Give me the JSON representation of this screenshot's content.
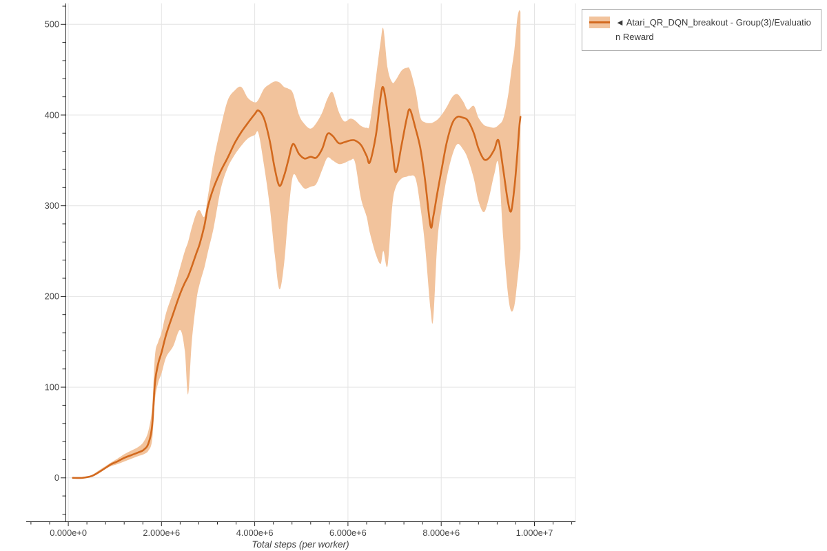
{
  "legend": {
    "entries": [
      {
        "label": "◄ Atari_QR_DQN_breakout - Group(3)/Evaluation Reward",
        "line_color": "#d2691e",
        "band_color": "#f2c39c"
      }
    ]
  },
  "chart_data": {
    "type": "line",
    "title": "",
    "xlabel": "Total steps (per worker)",
    "ylabel": "",
    "legend_position": "top-right-outside",
    "grid": {
      "show_major_x": true,
      "show_major_y": true,
      "color": "#e4e4e4"
    },
    "x_axis": {
      "min": -60000,
      "max": 10880000,
      "major_ticks": [
        0,
        2000000,
        4000000,
        6000000,
        8000000,
        10000000
      ],
      "major_tick_labels": [
        "0.000e+0",
        "2.000e+6",
        "4.000e+6",
        "6.000e+6",
        "8.000e+6",
        "1.000e+7"
      ],
      "minor_tick_step": 400000,
      "minor_tick_start": -800000
    },
    "y_axis": {
      "min": -48,
      "max": 523,
      "major_ticks": [
        0,
        100,
        200,
        300,
        400,
        500
      ],
      "major_tick_labels": [
        "0",
        "100",
        "200",
        "300",
        "400",
        "500"
      ],
      "minor_tick_step": 20,
      "minor_tick_start": -40
    },
    "series": [
      {
        "name": "Atari_QR_DQN_breakout - Group(3)/Evaluation Reward",
        "line_color": "#d2691e",
        "band_color": "#f2c39c",
        "x_scale": 1000000,
        "points_format": [
          "x_in_millions_of_steps",
          "mean",
          "band_low",
          "band_high"
        ],
        "points": [
          [
            0.1,
            0,
            0,
            0
          ],
          [
            0.3,
            0,
            0,
            0
          ],
          [
            0.5,
            2,
            1,
            3
          ],
          [
            0.65,
            6,
            5,
            8
          ],
          [
            0.8,
            11,
            10,
            13
          ],
          [
            0.92,
            15,
            13,
            17
          ],
          [
            1.05,
            18,
            15,
            21
          ],
          [
            1.2,
            22,
            18,
            26
          ],
          [
            1.35,
            25,
            21,
            30
          ],
          [
            1.5,
            28,
            24,
            34
          ],
          [
            1.62,
            31,
            26,
            40
          ],
          [
            1.72,
            38,
            30,
            52
          ],
          [
            1.8,
            58,
            42,
            78
          ],
          [
            1.86,
            105,
            86,
            135
          ],
          [
            1.93,
            126,
            105,
            150
          ],
          [
            2.0,
            138,
            115,
            160
          ],
          [
            2.1,
            158,
            133,
            182
          ],
          [
            2.25,
            181,
            145,
            205
          ],
          [
            2.4,
            203,
            163,
            232
          ],
          [
            2.5,
            215,
            140,
            250
          ],
          [
            2.57,
            222,
            92,
            260
          ],
          [
            2.65,
            233,
            150,
            276
          ],
          [
            2.75,
            248,
            196,
            292
          ],
          [
            2.82,
            258,
            214,
            295
          ],
          [
            2.92,
            278,
            232,
            288
          ],
          [
            3.0,
            300,
            250,
            312
          ],
          [
            3.12,
            320,
            276,
            350
          ],
          [
            3.27,
            338,
            318,
            386
          ],
          [
            3.42,
            353,
            342,
            416
          ],
          [
            3.57,
            369,
            356,
            427
          ],
          [
            3.71,
            381,
            366,
            431
          ],
          [
            3.85,
            391,
            374,
            419
          ],
          [
            4.0,
            401,
            378,
            414
          ],
          [
            4.08,
            405,
            380,
            417
          ],
          [
            4.2,
            396,
            344,
            429
          ],
          [
            4.32,
            372,
            300,
            434
          ],
          [
            4.43,
            341,
            246,
            437
          ],
          [
            4.53,
            322,
            208,
            436
          ],
          [
            4.63,
            333,
            236,
            431
          ],
          [
            4.72,
            350,
            290,
            429
          ],
          [
            4.82,
            368,
            333,
            424
          ],
          [
            4.95,
            357,
            326,
            400
          ],
          [
            5.07,
            352,
            319,
            390
          ],
          [
            5.2,
            354,
            321,
            385
          ],
          [
            5.32,
            353,
            324,
            391
          ],
          [
            5.45,
            363,
            340,
            403
          ],
          [
            5.56,
            379,
            353,
            418
          ],
          [
            5.67,
            377,
            350,
            425
          ],
          [
            5.8,
            369,
            346,
            404
          ],
          [
            5.92,
            370,
            347,
            393
          ],
          [
            6.05,
            372,
            350,
            396
          ],
          [
            6.15,
            372,
            348,
            394
          ],
          [
            6.28,
            367,
            308,
            388
          ],
          [
            6.4,
            355,
            288,
            386
          ],
          [
            6.47,
            348,
            270,
            391
          ],
          [
            6.6,
            378,
            246,
            441
          ],
          [
            6.7,
            420,
            236,
            481
          ],
          [
            6.76,
            430,
            250,
            495
          ],
          [
            6.85,
            402,
            234,
            452
          ],
          [
            6.95,
            362,
            300,
            436
          ],
          [
            7.03,
            337,
            321,
            439
          ],
          [
            7.15,
            367,
            330,
            449
          ],
          [
            7.26,
            396,
            332,
            452
          ],
          [
            7.33,
            406,
            333,
            450
          ],
          [
            7.45,
            385,
            330,
            427
          ],
          [
            7.55,
            364,
            300,
            398
          ],
          [
            7.65,
            330,
            258,
            392
          ],
          [
            7.77,
            278,
            186,
            391
          ],
          [
            7.83,
            288,
            176,
            392
          ],
          [
            7.92,
            315,
            262,
            395
          ],
          [
            8.02,
            343,
            300,
            401
          ],
          [
            8.12,
            370,
            331,
            409
          ],
          [
            8.24,
            391,
            356,
            420
          ],
          [
            8.35,
            398,
            368,
            423
          ],
          [
            8.47,
            397,
            362,
            415
          ],
          [
            8.57,
            394,
            352,
            406
          ],
          [
            8.7,
            380,
            330,
            410
          ],
          [
            8.8,
            363,
            305,
            397
          ],
          [
            8.92,
            351,
            293,
            389
          ],
          [
            9.03,
            353,
            310,
            387
          ],
          [
            9.14,
            362,
            335,
            386
          ],
          [
            9.23,
            372,
            345,
            389
          ],
          [
            9.33,
            340,
            264,
            396
          ],
          [
            9.43,
            305,
            204,
            420
          ],
          [
            9.5,
            294,
            184,
            447
          ],
          [
            9.57,
            320,
            190,
            472
          ],
          [
            9.63,
            355,
            215,
            505
          ],
          [
            9.67,
            384,
            235,
            515
          ],
          [
            9.7,
            398,
            252,
            514
          ]
        ]
      }
    ]
  },
  "colors": {
    "background": "#ffffff",
    "axis_line": "#262626",
    "tick": "#262626",
    "tick_label": "#474747",
    "axis_label": "#454545",
    "grid": "#e4e4e4",
    "legend_border": "#adadad",
    "legend_text": "#3a3a3a"
  }
}
